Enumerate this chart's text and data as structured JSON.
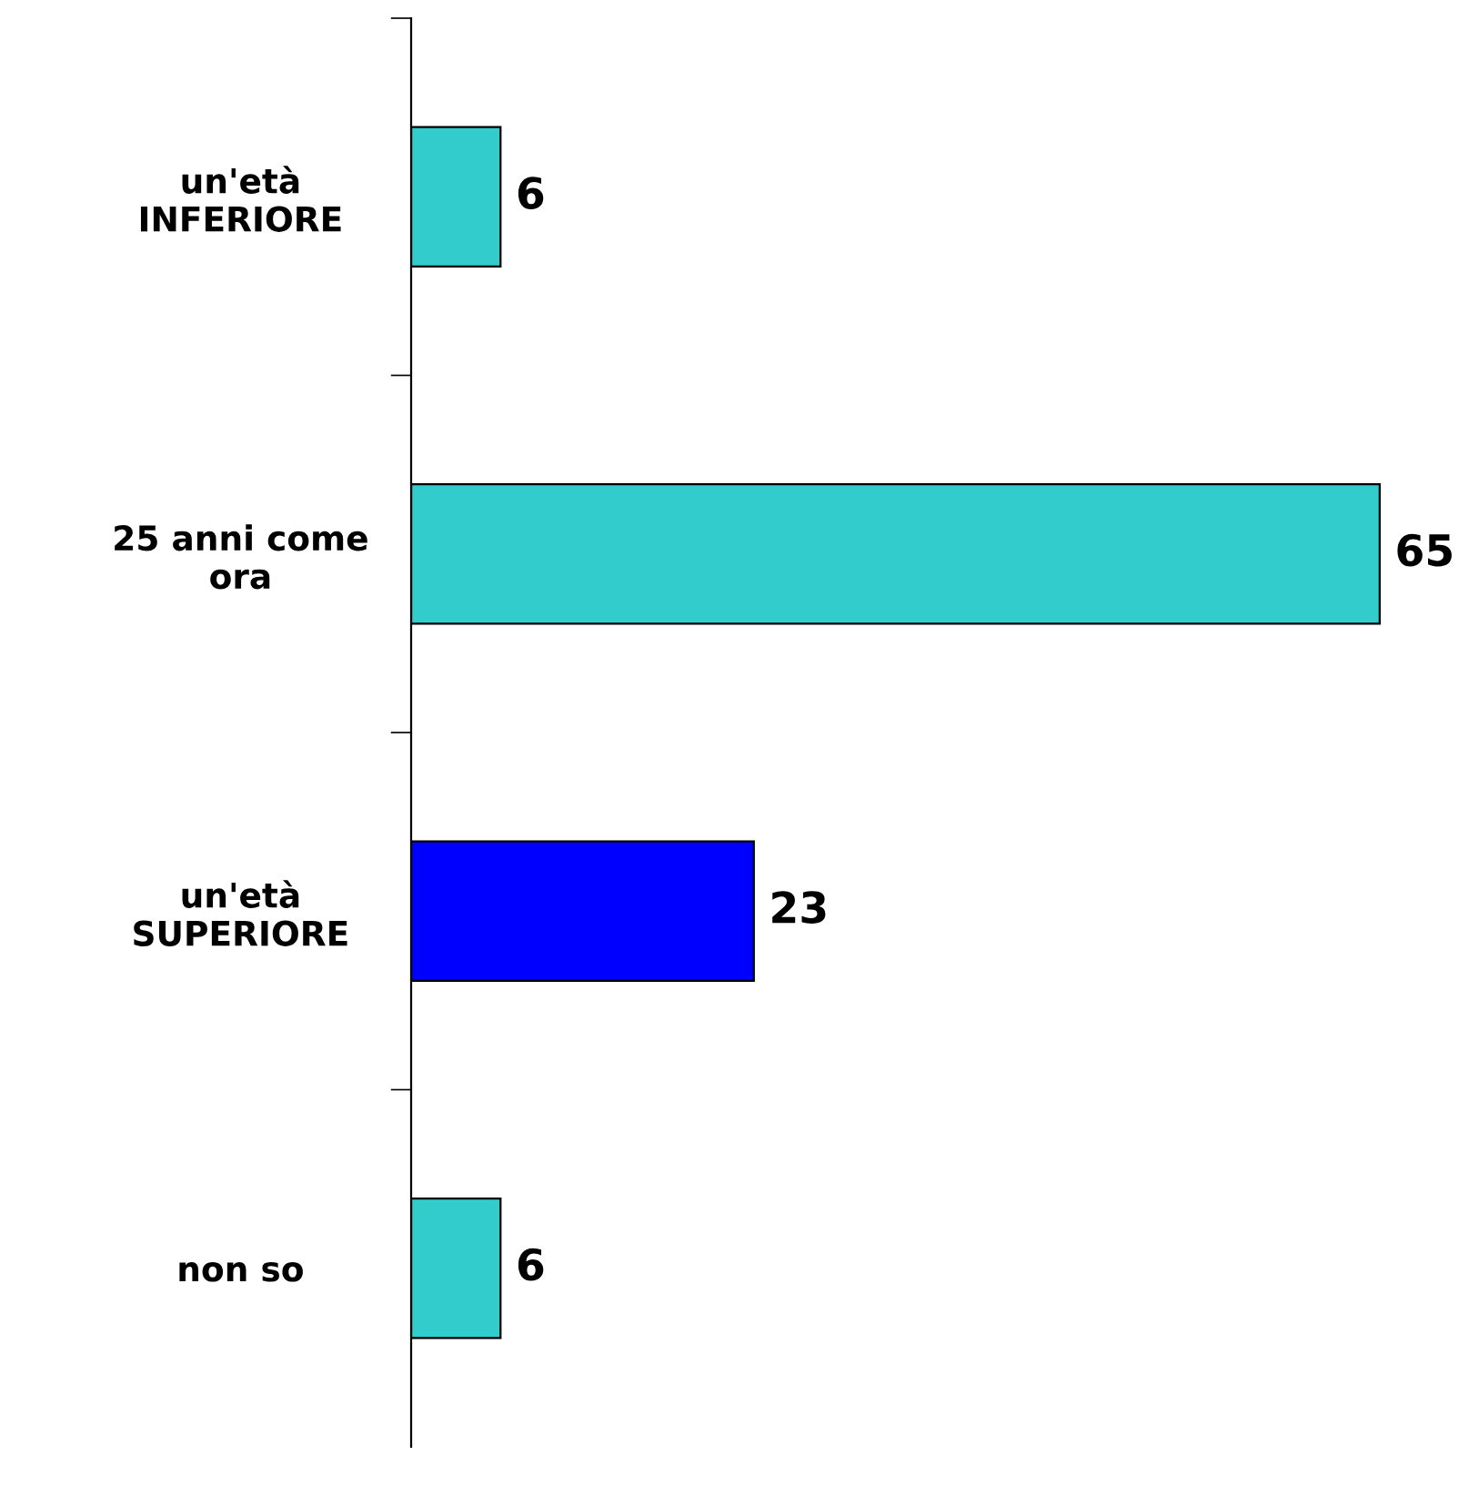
{
  "chart_data": {
    "type": "bar",
    "orientation": "horizontal",
    "categories": [
      "un'età\nINFERIORE",
      "25 anni come\nora",
      "un'età\nSUPERIORE",
      "non so"
    ],
    "values": [
      6,
      65,
      23,
      6
    ],
    "colors": [
      "#33cccc",
      "#33cccc",
      "#0000ff",
      "#33cccc"
    ],
    "data_labels": true,
    "grid": false,
    "legend": false,
    "tick_labels": "y"
  }
}
